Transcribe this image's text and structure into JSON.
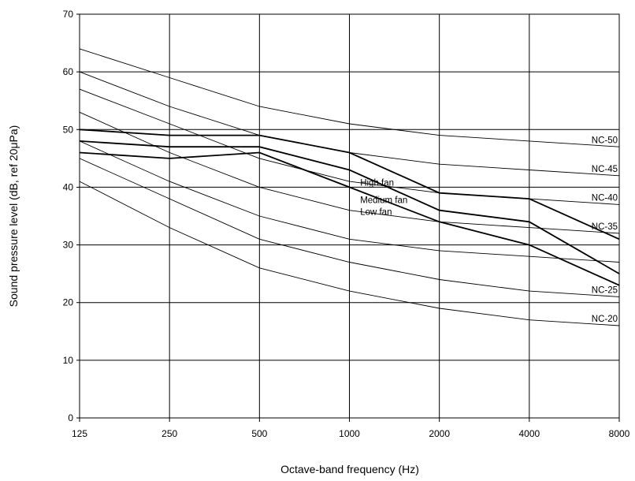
{
  "chart_data": {
    "type": "line",
    "title": "",
    "xlabel": "Octave-band frequency (Hz)",
    "ylabel": "Sound pressure level (dB, ref 20μPa)",
    "categories": [
      "125",
      "250",
      "500",
      "1000",
      "2000",
      "4000",
      "8000"
    ],
    "ylim": [
      0,
      70
    ],
    "y_ticks": [
      "0",
      "10",
      "20",
      "30",
      "40",
      "50",
      "60",
      "70"
    ],
    "grid": true,
    "legend": "none (curves labeled inline)",
    "series": [
      {
        "name": "NC-50",
        "kind": "reference",
        "values": [
          64,
          59,
          54,
          51,
          49,
          48,
          47
        ]
      },
      {
        "name": "NC-45",
        "kind": "reference",
        "values": [
          60,
          54,
          49,
          46,
          44,
          43,
          42
        ]
      },
      {
        "name": "NC-40",
        "kind": "reference",
        "values": [
          57,
          51,
          45,
          41,
          39,
          38,
          37
        ]
      },
      {
        "name": "NC-35",
        "kind": "reference",
        "values": [
          53,
          46,
          40,
          36,
          34,
          33,
          32
        ]
      },
      {
        "name": "",
        "kind": "reference",
        "values": [
          48,
          41,
          35,
          31,
          29,
          28,
          27
        ]
      },
      {
        "name": "NC-25",
        "kind": "reference",
        "values": [
          45,
          38,
          31,
          27,
          24,
          22,
          21
        ]
      },
      {
        "name": "NC-20",
        "kind": "reference",
        "values": [
          41,
          33,
          26,
          22,
          19,
          17,
          16
        ]
      },
      {
        "name": "High fan",
        "kind": "measured",
        "values": [
          50,
          49,
          49,
          46,
          39,
          38,
          31
        ]
      },
      {
        "name": "Medium fan",
        "kind": "measured",
        "values": [
          48,
          47,
          47,
          43,
          36,
          34,
          25
        ]
      },
      {
        "name": "Low fan",
        "kind": "measured",
        "values": [
          46,
          45,
          46,
          40,
          34,
          30,
          23
        ]
      }
    ]
  }
}
